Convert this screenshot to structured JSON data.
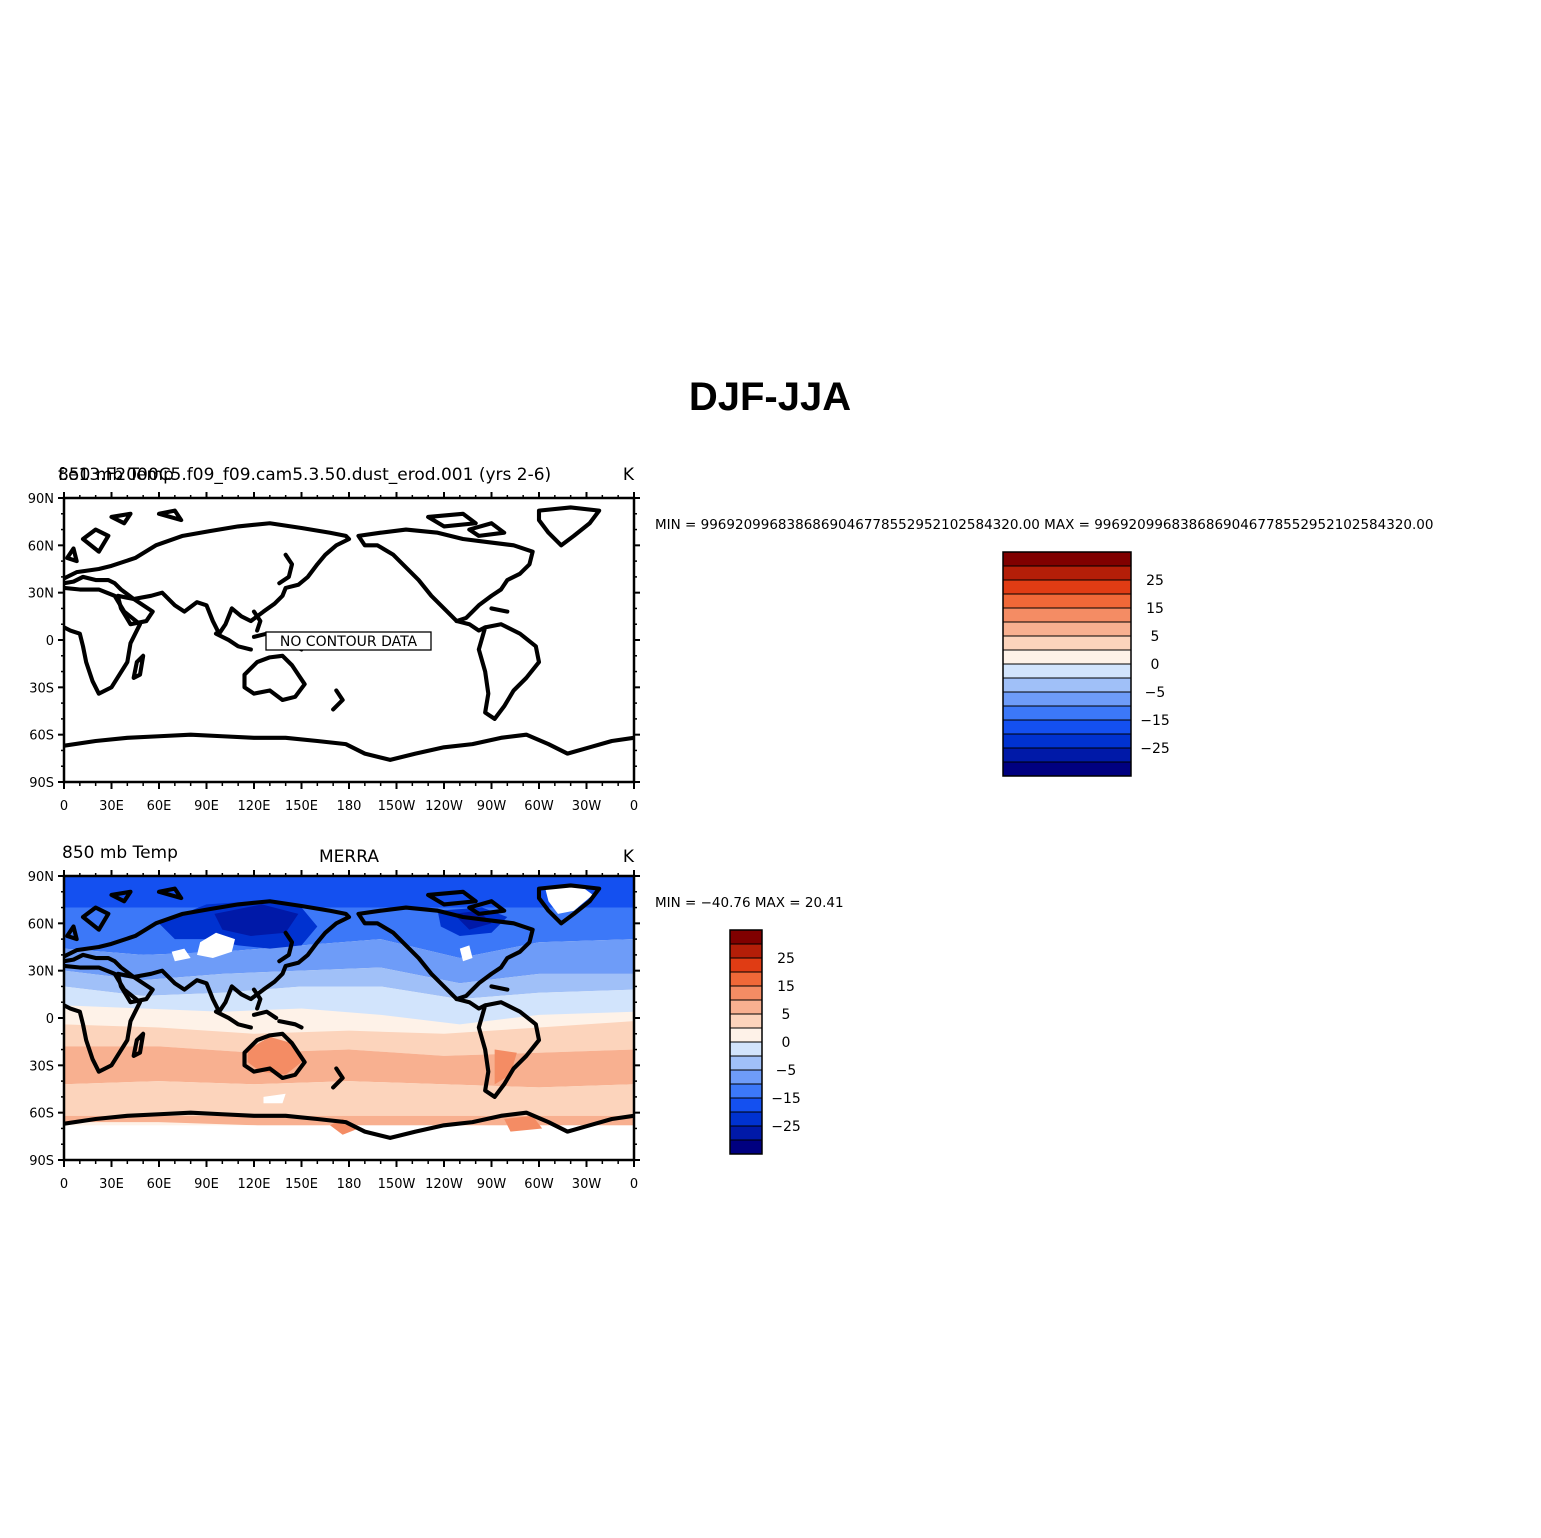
{
  "figure": {
    "title": "DJF-JJA",
    "panels": [
      {
        "left_label": "850 mb Temp",
        "left_label_overlap": "f.e13.F2000C5.f09_f09.cam5.3.50.dust_erod.001 (yrs 2-6)",
        "center_label": "",
        "right_label": "K",
        "stats": "MIN = 9969209968386869046778552952102584320.00 MAX = 9969209968386869046778552952102584320.00",
        "no_data_message": "NO CONTOUR DATA",
        "has_data": false
      },
      {
        "left_label": "850 mb Temp",
        "center_label": "MERRA",
        "right_label": "K",
        "stats": "MIN = −40.76 MAX =  20.41",
        "no_data_message": "",
        "has_data": true
      }
    ],
    "lat_ticks": [
      "90N",
      "60N",
      "30N",
      "0",
      "30S",
      "60S",
      "90S"
    ],
    "lon_ticks": [
      "0",
      "30E",
      "60E",
      "90E",
      "120E",
      "150E",
      "180",
      "150W",
      "120W",
      "90W",
      "60W",
      "30W",
      "0"
    ],
    "colorbar": {
      "colors": [
        "#000080",
        "#0019a8",
        "#0032d0",
        "#1450f0",
        "#3c78f8",
        "#6e9cf8",
        "#a0c0f8",
        "#d2e4fc",
        "#fef2e8",
        "#fcd4bc",
        "#f8b090",
        "#f48c64",
        "#f06838",
        "#e03c14",
        "#b41e08",
        "#800000"
      ],
      "labels": [
        "−25",
        "−15",
        "−5",
        "0",
        "5",
        "15",
        "25"
      ]
    }
  }
}
